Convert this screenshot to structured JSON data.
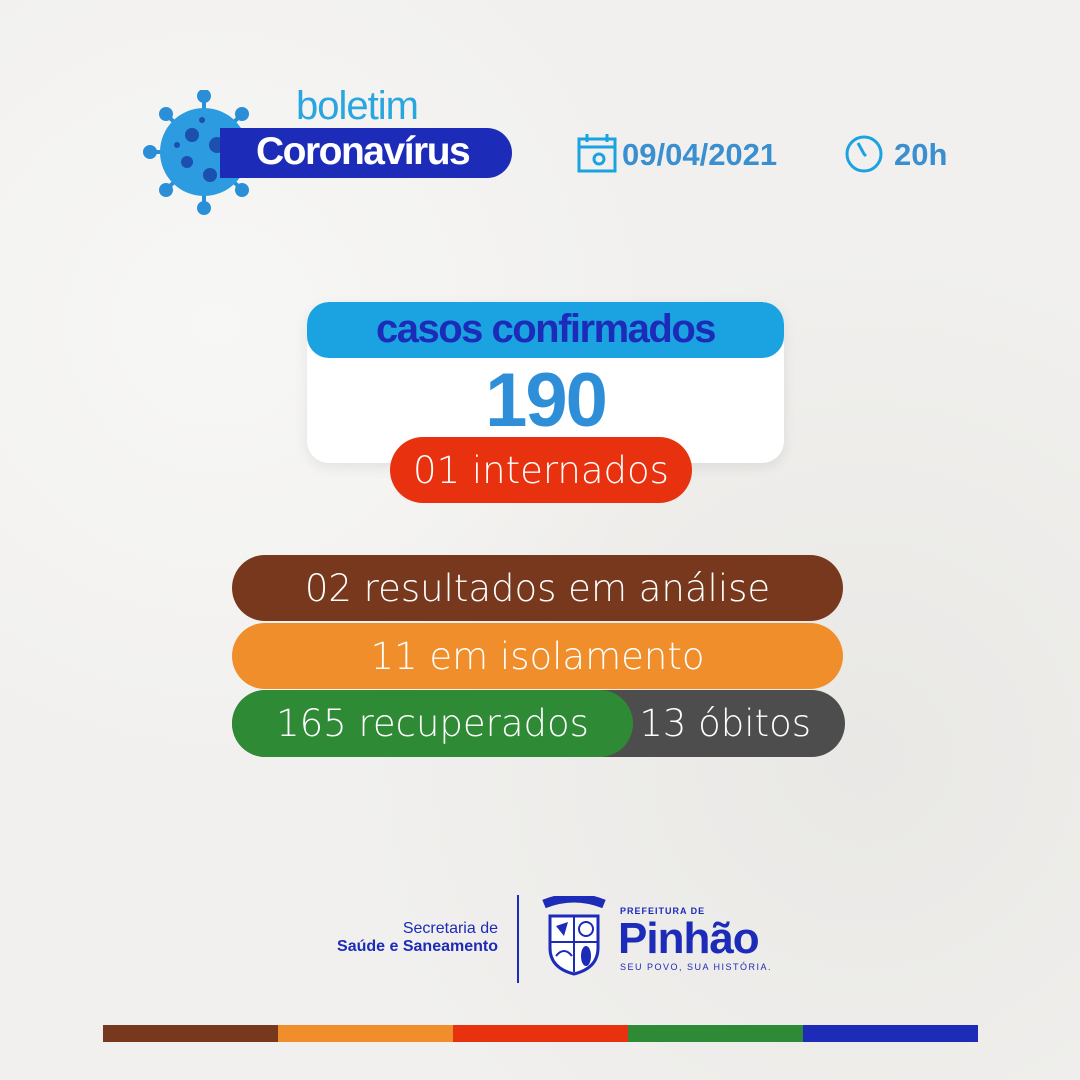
{
  "header": {
    "boletim": "boletim",
    "title": "Coronavírus",
    "date": "09/04/2021",
    "time": "20h",
    "icons": [
      "virus-icon",
      "calendar-icon",
      "clock-icon"
    ]
  },
  "cases": {
    "label": "casos confirmados",
    "total": "190",
    "hospitalized": "01 internados"
  },
  "stats": {
    "analysis": "02 resultados em análise",
    "isolation": "11 em isolamento",
    "recovered": "165 recuperados",
    "deaths": "13 óbitos"
  },
  "footer": {
    "secretaria_line1": "Secretaria de",
    "secretaria_line2": "Saúde e Saneamento",
    "prefeitura": "PREFEITURA DE",
    "city": "Pinhão",
    "slogan": "SEU POVO, SUA HISTÓRIA.",
    "crest_text": "PINHÃO"
  },
  "colors": {
    "blue": "#1c2bb8",
    "light_blue": "#1aa3e0",
    "red": "#e8320f",
    "brown": "#78381d",
    "orange": "#ef8e2a",
    "green": "#2f8a35",
    "gray": "#4d4d4d"
  }
}
